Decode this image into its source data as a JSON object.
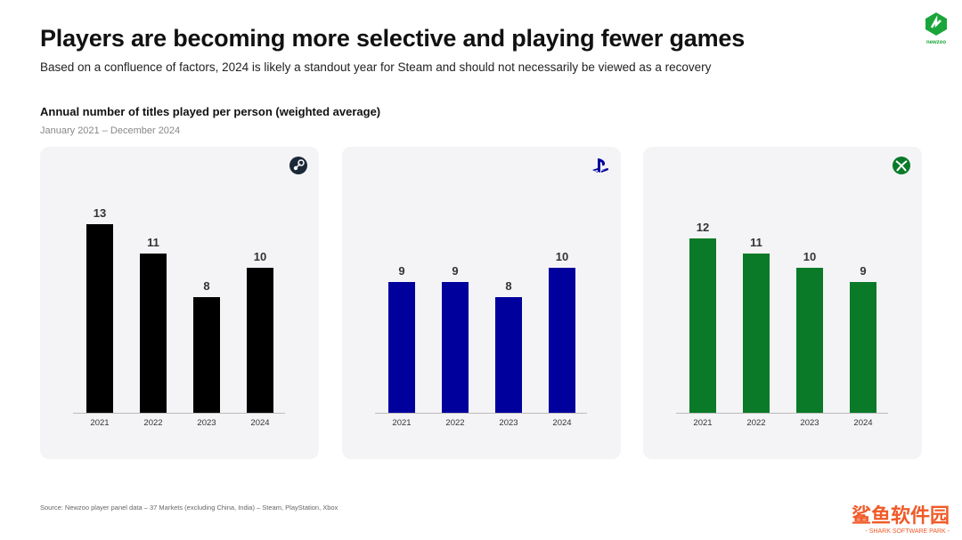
{
  "header": {
    "title": "Players are becoming more selective and playing fewer games",
    "subtitle": "Based on a confluence of factors, 2024 is likely a standout year for Steam and should not necessarily be viewed as a recovery",
    "logo_text": "newzoo"
  },
  "chart_data": [
    {
      "type": "bar",
      "platform": "Steam",
      "icon": "steam-icon",
      "color": "#000000",
      "categories": [
        "2021",
        "2022",
        "2023",
        "2024"
      ],
      "values": [
        13,
        11,
        8,
        10
      ],
      "title": "Annual number of titles played per person (weighted average)",
      "subtitle": "January 2021 – December 2024",
      "ylim": [
        0,
        14
      ]
    },
    {
      "type": "bar",
      "platform": "PlayStation",
      "icon": "playstation-icon",
      "color": "#00009c",
      "categories": [
        "2021",
        "2022",
        "2023",
        "2024"
      ],
      "values": [
        9,
        9,
        8,
        10
      ],
      "ylim": [
        0,
        14
      ]
    },
    {
      "type": "bar",
      "platform": "Xbox",
      "icon": "xbox-icon",
      "color": "#0a7a28",
      "categories": [
        "2021",
        "2022",
        "2023",
        "2024"
      ],
      "values": [
        12,
        11,
        10,
        9
      ],
      "ylim": [
        0,
        14
      ]
    }
  ],
  "chart_title": "Annual number of titles played per person (weighted average)",
  "chart_range": "January 2021 – December 2024",
  "footer": {
    "source": "Source: Newzoo player panel data – 37 Markets (excluding China, India) – Steam, PlayStation, Xbox",
    "watermark": "鲨鱼软件园",
    "watermark_sub": "- SHARK SOFTWARE PARK -"
  }
}
